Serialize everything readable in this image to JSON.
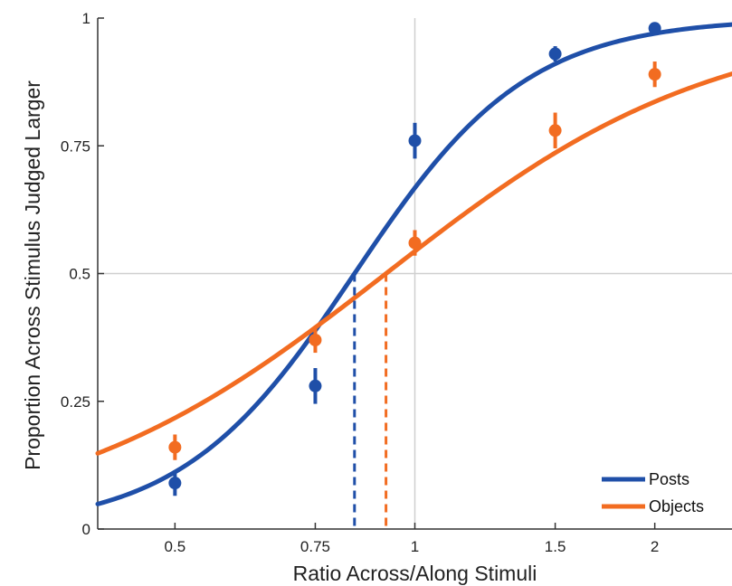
{
  "chart_data": {
    "type": "line",
    "title": "",
    "xlabel": "Ratio Across/Along Stimuli",
    "ylabel": "Proportion Across Stimulus Judged Larger",
    "x_scale": "log",
    "xlim": [
      0.4,
      2.5
    ],
    "ylim": [
      0,
      1
    ],
    "x_ticks": [
      0.5,
      0.75,
      1,
      1.5,
      2
    ],
    "x_tick_labels": [
      "0.5",
      "0.75",
      "1",
      "1.5",
      "2"
    ],
    "y_ticks": [
      0,
      0.25,
      0.5,
      0.75,
      1
    ],
    "y_tick_labels": [
      "0",
      "0.25",
      "0.5",
      "0.75",
      "1"
    ],
    "reference_lines": {
      "x": 1,
      "y": 0.5
    },
    "legend_position": "bottom-right",
    "series": [
      {
        "name": "Posts",
        "color": "#1f4fa8",
        "points": [
          {
            "x": 0.5,
            "y": 0.09,
            "err": 0.025
          },
          {
            "x": 0.75,
            "y": 0.28,
            "err": 0.035
          },
          {
            "x": 1,
            "y": 0.76,
            "err": 0.035
          },
          {
            "x": 1.5,
            "y": 0.93,
            "err": 0.015
          },
          {
            "x": 2,
            "y": 0.98,
            "err": 0.01
          }
        ],
        "fit": {
          "pse": 0.84,
          "slope": 4.0
        }
      },
      {
        "name": "Objects",
        "color": "#f26c21",
        "points": [
          {
            "x": 0.5,
            "y": 0.16,
            "err": 0.025
          },
          {
            "x": 0.75,
            "y": 0.37,
            "err": 0.025
          },
          {
            "x": 1,
            "y": 0.56,
            "err": 0.025
          },
          {
            "x": 1.5,
            "y": 0.78,
            "err": 0.035
          },
          {
            "x": 2,
            "y": 0.89,
            "err": 0.025
          }
        ],
        "fit": {
          "pse": 0.92,
          "slope": 2.1
        }
      }
    ]
  }
}
